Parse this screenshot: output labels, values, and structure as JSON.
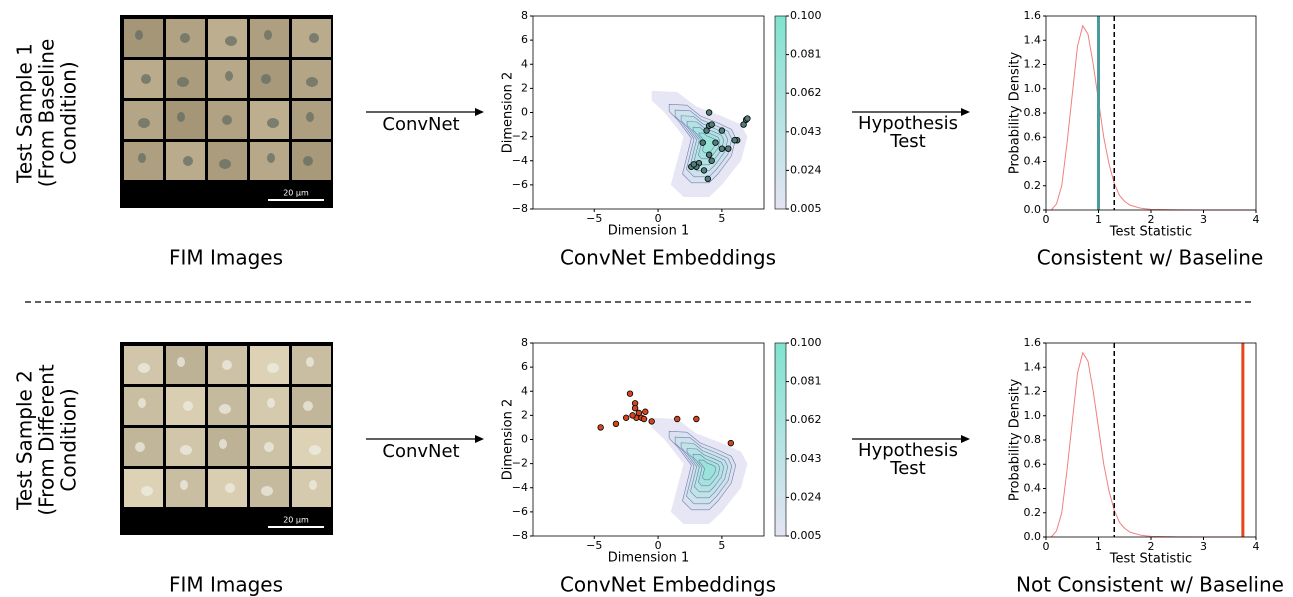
{
  "rows": [
    {
      "label": [
        "Test Sample 1",
        "(From Baseline",
        "Condition)"
      ],
      "scale_bar": "20 µm",
      "image_caption": "FIM Images",
      "arrow1": "ConvNet",
      "arrow2": [
        "Hypothesis",
        "Test"
      ],
      "embedding_caption": "ConvNet Embeddings",
      "result_caption": "Consistent w/ Baseline"
    },
    {
      "label": [
        "Test Sample 2",
        "(From Different",
        "Condition)"
      ],
      "scale_bar": "20 µm",
      "image_caption": "FIM Images",
      "arrow1": "ConvNet",
      "arrow2": [
        "Hypothesis",
        "Test"
      ],
      "embedding_caption": "ConvNet Embeddings",
      "result_caption": "Not Consistent w/ Baseline"
    }
  ],
  "chart_data": [
    {
      "type": "scatter",
      "xlabel": "Dimension 1",
      "ylabel": "Dimension 2",
      "x": [
        4,
        4,
        4.2,
        3.8,
        5,
        4.5,
        5,
        3.5,
        4,
        4.2,
        3.2,
        3,
        2.6,
        2.8,
        3.6,
        3.9,
        6.2,
        6,
        6.7,
        6.9,
        7,
        5.5
      ],
      "y": [
        0,
        -1.1,
        -1,
        -1.5,
        -1.5,
        -2.5,
        -3,
        -2.5,
        -3.5,
        -4,
        -4.2,
        -4.5,
        -4.5,
        -4.3,
        -4.8,
        -5.5,
        -2.3,
        -2.3,
        -1,
        -0.6,
        -0.5,
        -3
      ],
      "color": "#4f7f7a",
      "xlim": [
        -9.8,
        8.3
      ],
      "xticks": [
        {
          "value": -5,
          "label": "−5"
        },
        0,
        5
      ],
      "ylim": [
        -8,
        8
      ],
      "yticks": [
        {
          "value": -8,
          "label": "−8"
        },
        {
          "value": -6,
          "label": "−6"
        },
        {
          "value": -4,
          "label": "−4"
        },
        {
          "value": -2,
          "label": "−2"
        },
        0,
        2,
        4,
        6,
        8
      ],
      "colorbar": {
        "lim": [
          0.005,
          0.1
        ],
        "ticks": [
          0.005,
          0.024,
          0.043,
          0.062,
          0.081,
          {
            "value": 0.1,
            "label": "0.100"
          }
        ],
        "colors": [
          "#e4e3f4",
          "#7fe3cf"
        ]
      }
    },
    {
      "type": "line",
      "xlabel": "Test Statistic",
      "ylabel": "Probability Density",
      "x": [
        0.1,
        0.2,
        0.3,
        0.4,
        0.5,
        0.6,
        0.7,
        0.8,
        0.9,
        1.0,
        1.1,
        1.2,
        1.3,
        1.4,
        1.5,
        1.6,
        1.8,
        2.0,
        2.5,
        3.0,
        4.0
      ],
      "values": [
        0,
        0.05,
        0.2,
        0.55,
        0.95,
        1.35,
        1.52,
        1.45,
        1.2,
        0.9,
        0.6,
        0.38,
        0.22,
        0.12,
        0.07,
        0.04,
        0.015,
        0.005,
        0.001,
        0,
        0
      ],
      "color": "#f08080",
      "vlines": [
        {
          "x": 1.0,
          "color": "#4a9a9e",
          "style": "solid"
        },
        {
          "x": 1.3,
          "color": "#000000",
          "style": "dashed"
        }
      ],
      "xlim": [
        0,
        4
      ],
      "xticks": [
        0,
        1,
        2,
        3,
        4
      ],
      "ylim": [
        0,
        1.6
      ],
      "yticks": [
        {
          "value": 0,
          "label": "0.0"
        },
        0.2,
        0.4,
        0.6,
        0.8,
        {
          "value": 1,
          "label": "1.0"
        },
        1.2,
        1.4,
        1.6
      ]
    },
    {
      "type": "scatter",
      "xlabel": "Dimension 1",
      "ylabel": "Dimension 2",
      "x": [
        -2.2,
        -4.5,
        -3.3,
        -2.5,
        -1.8,
        -1.8,
        -1.5,
        -1.7,
        -1.3,
        -1,
        -1.1,
        -0.5,
        1.5,
        3,
        5.7,
        -2
      ],
      "y": [
        3.8,
        1,
        1.3,
        1.8,
        3,
        2.6,
        2.2,
        1.8,
        1.8,
        2.3,
        1.7,
        1.5,
        1.7,
        1.7,
        -0.3,
        2
      ],
      "color": "#d2461e",
      "xlim": [
        -9.8,
        8.3
      ],
      "xticks": [
        {
          "value": -5,
          "label": "−5"
        },
        0,
        5
      ],
      "ylim": [
        -8,
        8
      ],
      "yticks": [
        {
          "value": -8,
          "label": "−8"
        },
        {
          "value": -6,
          "label": "−6"
        },
        {
          "value": -4,
          "label": "−4"
        },
        {
          "value": -2,
          "label": "−2"
        },
        0,
        2,
        4,
        6,
        8
      ],
      "colorbar": {
        "lim": [
          0.005,
          0.1
        ],
        "ticks": [
          0.005,
          0.024,
          0.043,
          0.062,
          0.081,
          {
            "value": 0.1,
            "label": "0.100"
          }
        ],
        "colors": [
          "#e4e3f4",
          "#7fe3cf"
        ]
      }
    },
    {
      "type": "line",
      "xlabel": "Test Statistic",
      "ylabel": "Probability Density",
      "x": [
        0.1,
        0.2,
        0.3,
        0.4,
        0.5,
        0.6,
        0.7,
        0.8,
        0.9,
        1.0,
        1.1,
        1.2,
        1.3,
        1.4,
        1.5,
        1.6,
        1.8,
        2.0,
        2.5,
        3.0,
        4.0
      ],
      "values": [
        0,
        0.05,
        0.2,
        0.55,
        0.95,
        1.35,
        1.52,
        1.45,
        1.2,
        0.9,
        0.6,
        0.38,
        0.22,
        0.12,
        0.07,
        0.04,
        0.015,
        0.005,
        0.001,
        0,
        0
      ],
      "color": "#f08080",
      "vlines": [
        {
          "x": 1.3,
          "color": "#000000",
          "style": "dashed"
        },
        {
          "x": 3.75,
          "color": "#e8461a",
          "style": "solid"
        }
      ],
      "xlim": [
        0,
        4
      ],
      "xticks": [
        0,
        1,
        2,
        3,
        4
      ],
      "ylim": [
        0,
        1.6
      ],
      "yticks": [
        {
          "value": 0,
          "label": "0.0"
        },
        0.2,
        0.4,
        0.6,
        0.8,
        {
          "value": 1,
          "label": "1.0"
        },
        1.2,
        1.4,
        1.6
      ]
    }
  ]
}
